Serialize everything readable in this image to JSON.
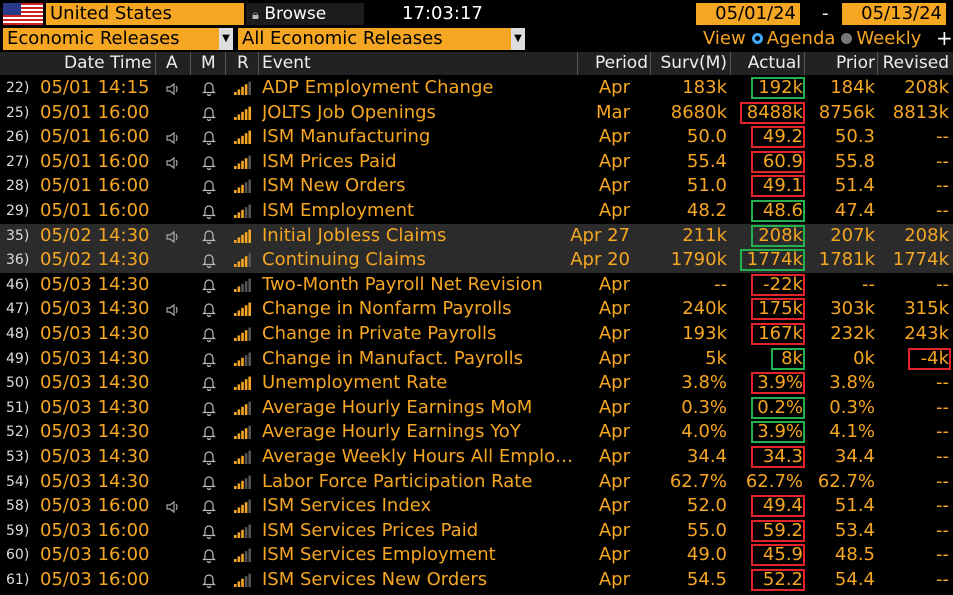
{
  "toolbar": {
    "country": "United States",
    "browse_label": "Browse",
    "time": "17:03:17",
    "start_date": "05/01/24",
    "date_separator": "-",
    "end_date": "05/13/24",
    "category": "Economic Releases",
    "filter": "All Economic Releases",
    "view_label": "View",
    "agenda_label": "Agenda",
    "weekly_label": "Weekly",
    "plus": "+"
  },
  "columns": {
    "datetime": "Date Time",
    "a": "A",
    "m": "M",
    "r": "R",
    "event": "Event",
    "period": "Period",
    "survey": "Surv(M)",
    "actual": "Actual",
    "prior": "Prior",
    "revised": "Revised"
  },
  "colors": {
    "accent": "#f5a623",
    "beat": "#22b14c",
    "miss": "#e2242a",
    "highlight_row": "#2b2b2b"
  },
  "rows": [
    {
      "idx": "22)",
      "date": "05/01",
      "time": "14:15",
      "event": "ADP Employment Change",
      "period": "Apr",
      "survey": "183k",
      "actual": "192k",
      "prior": "184k",
      "revised": "208k",
      "alert": true,
      "bars": 4,
      "actual_box": "green"
    },
    {
      "idx": "25)",
      "date": "05/01",
      "time": "16:00",
      "event": "JOLTS Job Openings",
      "period": "Mar",
      "survey": "8680k",
      "actual": "8488k",
      "prior": "8756k",
      "revised": "8813k",
      "alert": false,
      "bars": 5,
      "actual_box": "red"
    },
    {
      "idx": "26)",
      "date": "05/01",
      "time": "16:00",
      "event": "ISM Manufacturing",
      "period": "Apr",
      "survey": "50.0",
      "actual": "49.2",
      "prior": "50.3",
      "revised": "--",
      "alert": true,
      "bars": 5,
      "actual_box": "red"
    },
    {
      "idx": "27)",
      "date": "05/01",
      "time": "16:00",
      "event": "ISM Prices Paid",
      "period": "Apr",
      "survey": "55.4",
      "actual": "60.9",
      "prior": "55.8",
      "revised": "--",
      "alert": true,
      "bars": 4,
      "actual_box": "red"
    },
    {
      "idx": "28)",
      "date": "05/01",
      "time": "16:00",
      "event": "ISM New Orders",
      "period": "Apr",
      "survey": "51.0",
      "actual": "49.1",
      "prior": "51.4",
      "revised": "--",
      "alert": false,
      "bars": 3,
      "actual_box": "red"
    },
    {
      "idx": "29)",
      "date": "05/01",
      "time": "16:00",
      "event": "ISM Employment",
      "period": "Apr",
      "survey": "48.2",
      "actual": "48.6",
      "prior": "47.4",
      "revised": "--",
      "alert": false,
      "bars": 3,
      "actual_box": "green"
    },
    {
      "idx": "35)",
      "date": "05/02",
      "time": "14:30",
      "event": "Initial Jobless Claims",
      "period": "Apr 27",
      "survey": "211k",
      "actual": "208k",
      "prior": "207k",
      "revised": "208k",
      "alert": true,
      "bars": 5,
      "actual_box": "green",
      "highlight": true
    },
    {
      "idx": "36)",
      "date": "05/02",
      "time": "14:30",
      "event": "Continuing Claims",
      "period": "Apr 20",
      "survey": "1790k",
      "actual": "1774k",
      "prior": "1781k",
      "revised": "1774k",
      "alert": false,
      "bars": 4,
      "actual_box": "green",
      "highlight": true
    },
    {
      "idx": "46)",
      "date": "05/03",
      "time": "14:30",
      "event": "Two-Month Payroll Net Revision",
      "period": "Apr",
      "survey": "--",
      "actual": "-22k",
      "prior": "--",
      "revised": "--",
      "alert": false,
      "bars": 2,
      "actual_box": "red"
    },
    {
      "idx": "47)",
      "date": "05/03",
      "time": "14:30",
      "event": "Change in Nonfarm Payrolls",
      "period": "Apr",
      "survey": "240k",
      "actual": "175k",
      "prior": "303k",
      "revised": "315k",
      "alert": true,
      "bars": 5,
      "actual_box": "red"
    },
    {
      "idx": "48)",
      "date": "05/03",
      "time": "14:30",
      "event": "Change in Private Payrolls",
      "period": "Apr",
      "survey": "193k",
      "actual": "167k",
      "prior": "232k",
      "revised": "243k",
      "alert": false,
      "bars": 4,
      "actual_box": "red"
    },
    {
      "idx": "49)",
      "date": "05/03",
      "time": "14:30",
      "event": "Change in Manufact. Payrolls",
      "period": "Apr",
      "survey": "5k",
      "actual": "8k",
      "prior": "0k",
      "revised": "-4k",
      "alert": false,
      "bars": 3,
      "actual_box": "green",
      "revised_box": "red"
    },
    {
      "idx": "50)",
      "date": "05/03",
      "time": "14:30",
      "event": "Unemployment Rate",
      "period": "Apr",
      "survey": "3.8%",
      "actual": "3.9%",
      "prior": "3.8%",
      "revised": "--",
      "alert": false,
      "bars": 5,
      "actual_box": "red"
    },
    {
      "idx": "51)",
      "date": "05/03",
      "time": "14:30",
      "event": "Average Hourly Earnings MoM",
      "period": "Apr",
      "survey": "0.3%",
      "actual": "0.2%",
      "prior": "0.3%",
      "revised": "--",
      "alert": false,
      "bars": 4,
      "actual_box": "green"
    },
    {
      "idx": "52)",
      "date": "05/03",
      "time": "14:30",
      "event": "Average Hourly Earnings YoY",
      "period": "Apr",
      "survey": "4.0%",
      "actual": "3.9%",
      "prior": "4.1%",
      "revised": "--",
      "alert": false,
      "bars": 4,
      "actual_box": "green"
    },
    {
      "idx": "53)",
      "date": "05/03",
      "time": "14:30",
      "event": "Average Weekly Hours All Emplo…",
      "period": "Apr",
      "survey": "34.4",
      "actual": "34.3",
      "prior": "34.4",
      "revised": "--",
      "alert": false,
      "bars": 3,
      "actual_box": "red"
    },
    {
      "idx": "54)",
      "date": "05/03",
      "time": "14:30",
      "event": "Labor Force Participation Rate",
      "period": "Apr",
      "survey": "62.7%",
      "actual": "62.7%",
      "prior": "62.7%",
      "revised": "--",
      "alert": false,
      "bars": 3,
      "actual_box": ""
    },
    {
      "idx": "58)",
      "date": "05/03",
      "time": "16:00",
      "event": "ISM Services Index",
      "period": "Apr",
      "survey": "52.0",
      "actual": "49.4",
      "prior": "51.4",
      "revised": "--",
      "alert": true,
      "bars": 4,
      "actual_box": "red"
    },
    {
      "idx": "59)",
      "date": "05/03",
      "time": "16:00",
      "event": "ISM Services Prices Paid",
      "period": "Apr",
      "survey": "55.0",
      "actual": "59.2",
      "prior": "53.4",
      "revised": "--",
      "alert": false,
      "bars": 3,
      "actual_box": "red"
    },
    {
      "idx": "60)",
      "date": "05/03",
      "time": "16:00",
      "event": "ISM Services Employment",
      "period": "Apr",
      "survey": "49.0",
      "actual": "45.9",
      "prior": "48.5",
      "revised": "--",
      "alert": false,
      "bars": 3,
      "actual_box": "red"
    },
    {
      "idx": "61)",
      "date": "05/03",
      "time": "16:00",
      "event": "ISM Services New Orders",
      "period": "Apr",
      "survey": "54.5",
      "actual": "52.2",
      "prior": "54.4",
      "revised": "--",
      "alert": false,
      "bars": 3,
      "actual_box": "red"
    }
  ]
}
